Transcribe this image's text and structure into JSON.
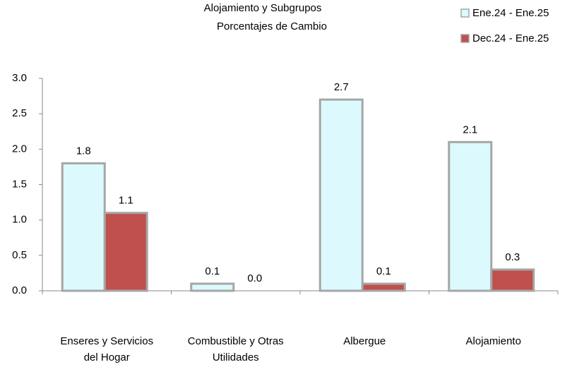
{
  "chart_data": {
    "type": "bar",
    "title": "Alojamiento y Subgrupos",
    "subtitle": "Porcentajes de Cambio",
    "categories": [
      "Enseres y Servicios\ndel Hogar",
      "Combustible y Otras\nUtilidades",
      "Albergue",
      "Alojamiento"
    ],
    "series": [
      {
        "name": "Ene.24 - Ene.25",
        "color": "#dcfafd",
        "values": [
          1.8,
          0.1,
          2.7,
          2.1
        ],
        "value_labels": [
          "1.8",
          "0.1",
          "2.7",
          "2.1"
        ]
      },
      {
        "name": "Dec.24  - Ene.25",
        "color": "#c0504d",
        "values": [
          1.1,
          0,
          0.1,
          0.3
        ],
        "value_labels": [
          "1.1",
          "0.0",
          "0.1",
          "0.3"
        ]
      }
    ],
    "ylim": [
      0,
      3
    ],
    "yticks": [
      {
        "value": 0,
        "label": "0.0"
      },
      {
        "value": 0.5,
        "label": "0.5"
      },
      {
        "value": 1,
        "label": "1.0"
      },
      {
        "value": 1.5,
        "label": "1.5"
      },
      {
        "value": 2,
        "label": "2.0"
      },
      {
        "value": 2.5,
        "label": "2.5"
      },
      {
        "value": 3,
        "label": "3.0"
      }
    ],
    "legend": "top-right"
  }
}
